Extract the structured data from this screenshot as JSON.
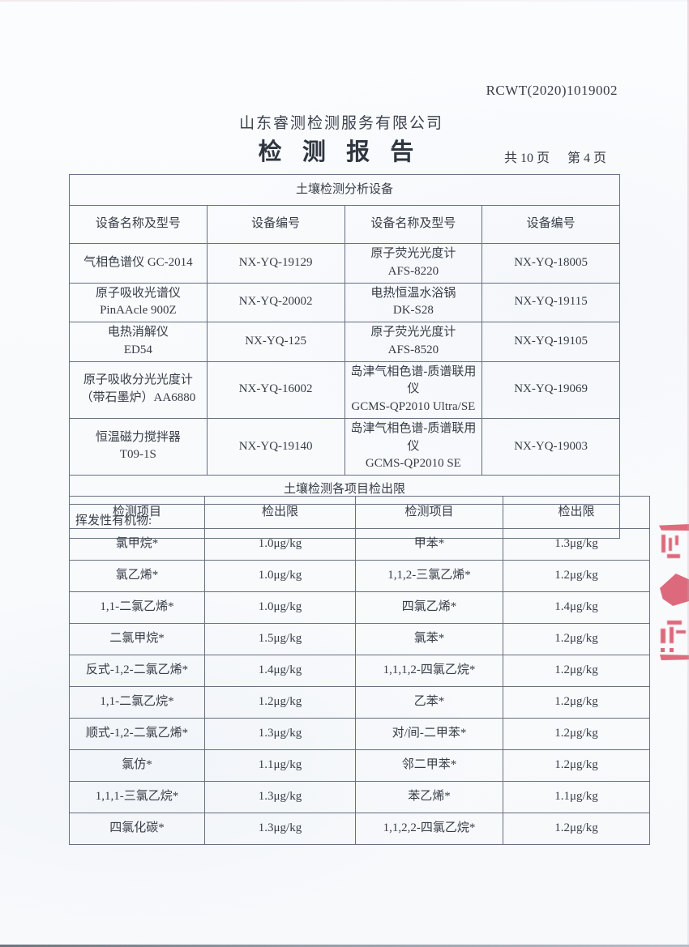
{
  "page": {
    "report_no": "RCWT(2020)1019002",
    "company": "山东睿测检测服务有限公司",
    "title": "检 测 报 告",
    "pages_total": "共 10 页",
    "page_current": "第 4 页"
  },
  "equipment_table": {
    "caption": "土壤检测分析设备",
    "headers": [
      "设备名称及型号",
      "设备编号",
      "设备名称及型号",
      "设备编号"
    ],
    "rows": [
      [
        [
          "气相色谱仪 GC-2014"
        ],
        "NX-YQ-19129",
        [
          "原子荧光光度计",
          "AFS-8220"
        ],
        "NX-YQ-18005"
      ],
      [
        [
          "原子吸收光谱仪",
          "PinAAcle 900Z"
        ],
        "NX-YQ-20002",
        [
          "电热恒温水浴锅",
          "DK-S28"
        ],
        "NX-YQ-19115"
      ],
      [
        [
          "电热消解仪",
          "ED54"
        ],
        "NX-YQ-125",
        [
          "原子荧光光度计",
          "AFS-8520"
        ],
        "NX-YQ-19105"
      ],
      [
        [
          "原子吸收分光光度计",
          "（带石墨炉）AA6880"
        ],
        "NX-YQ-16002",
        [
          "岛津气相色谱-质谱联用仪",
          "GCMS-QP2010 Ultra/SE"
        ],
        "NX-YQ-19069"
      ],
      [
        [
          "恒温磁力搅拌器",
          "T09-1S"
        ],
        "NX-YQ-19140",
        [
          "岛津气相色谱-质谱联用仪",
          "GCMS-QP2010 SE"
        ],
        "NX-YQ-19003"
      ]
    ],
    "section_footer": "土壤检测各项目检出限"
  },
  "section_label": "挥发性有机物:",
  "limits_table": {
    "headers": [
      "检测项目",
      "检出限",
      "检测项目",
      "检出限"
    ],
    "rows": [
      [
        "氯甲烷*",
        "1.0μg/kg",
        "甲苯*",
        "1.3μg/kg"
      ],
      [
        "氯乙烯*",
        "1.0μg/kg",
        "1,1,2-三氯乙烯*",
        "1.2μg/kg"
      ],
      [
        "1,1-二氯乙烯*",
        "1.0μg/kg",
        "四氯乙烯*",
        "1.4μg/kg"
      ],
      [
        "二氯甲烷*",
        "1.5μg/kg",
        "氯苯*",
        "1.2μg/kg"
      ],
      [
        "反式-1,2-二氯乙烯*",
        "1.4μg/kg",
        "1,1,1,2-四氯乙烷*",
        "1.2μg/kg"
      ],
      [
        "1,1-二氯乙烷*",
        "1.2μg/kg",
        "乙苯*",
        "1.2μg/kg"
      ],
      [
        "顺式-1,2-二氯乙烯*",
        "1.3μg/kg",
        "对/间-二甲苯*",
        "1.2μg/kg"
      ],
      [
        "氯仿*",
        "1.1μg/kg",
        "邻二甲苯*",
        "1.2μg/kg"
      ],
      [
        "1,1,1-三氯乙烷*",
        "1.3μg/kg",
        "苯乙烯*",
        "1.1μg/kg"
      ],
      [
        "四氯化碳*",
        "1.3μg/kg",
        "1,1,2,2-四氯乙烷*",
        "1.2μg/kg"
      ]
    ]
  },
  "stamp": {
    "color": "#d9566a"
  }
}
